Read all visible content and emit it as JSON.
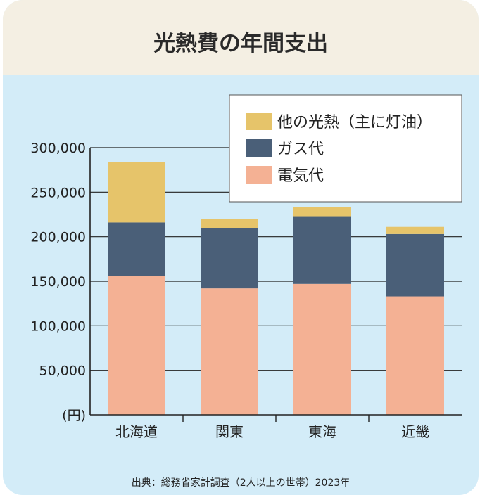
{
  "title": "光熱費の年間支出",
  "source": "出典：総務省家計調査（2人以上の世帯）2023年",
  "colors": {
    "header_bg": "#f4efe3",
    "panel_bg": "#d3ecf8",
    "electricity": "#f4b194",
    "gas": "#4a5f78",
    "other": "#e6c46a"
  },
  "chart_data": {
    "type": "bar",
    "stacked": true,
    "categories": [
      "北海道",
      "関東",
      "東海",
      "近畿"
    ],
    "series": [
      {
        "name": "電気代",
        "values": [
          156000,
          142000,
          147000,
          133000
        ],
        "color": "#f4b194"
      },
      {
        "name": "ガス代",
        "values": [
          60000,
          68000,
          76000,
          70000
        ],
        "color": "#4a5f78"
      },
      {
        "name": "他の光熱（主に灯油）",
        "values": [
          68000,
          10000,
          10000,
          8000
        ],
        "color": "#e6c46a"
      }
    ],
    "ylim": [
      0,
      300000
    ],
    "yticks": [
      0,
      50000,
      100000,
      150000,
      200000,
      250000,
      300000
    ],
    "ytick_labels": [
      "(円)",
      "50,000",
      "100,000",
      "150,000",
      "200,000",
      "250,000",
      "300,000"
    ],
    "legend_position": "top-right",
    "legend_order": [
      "他の光熱（主に灯油）",
      "ガス代",
      "電気代"
    ],
    "grid": true
  }
}
